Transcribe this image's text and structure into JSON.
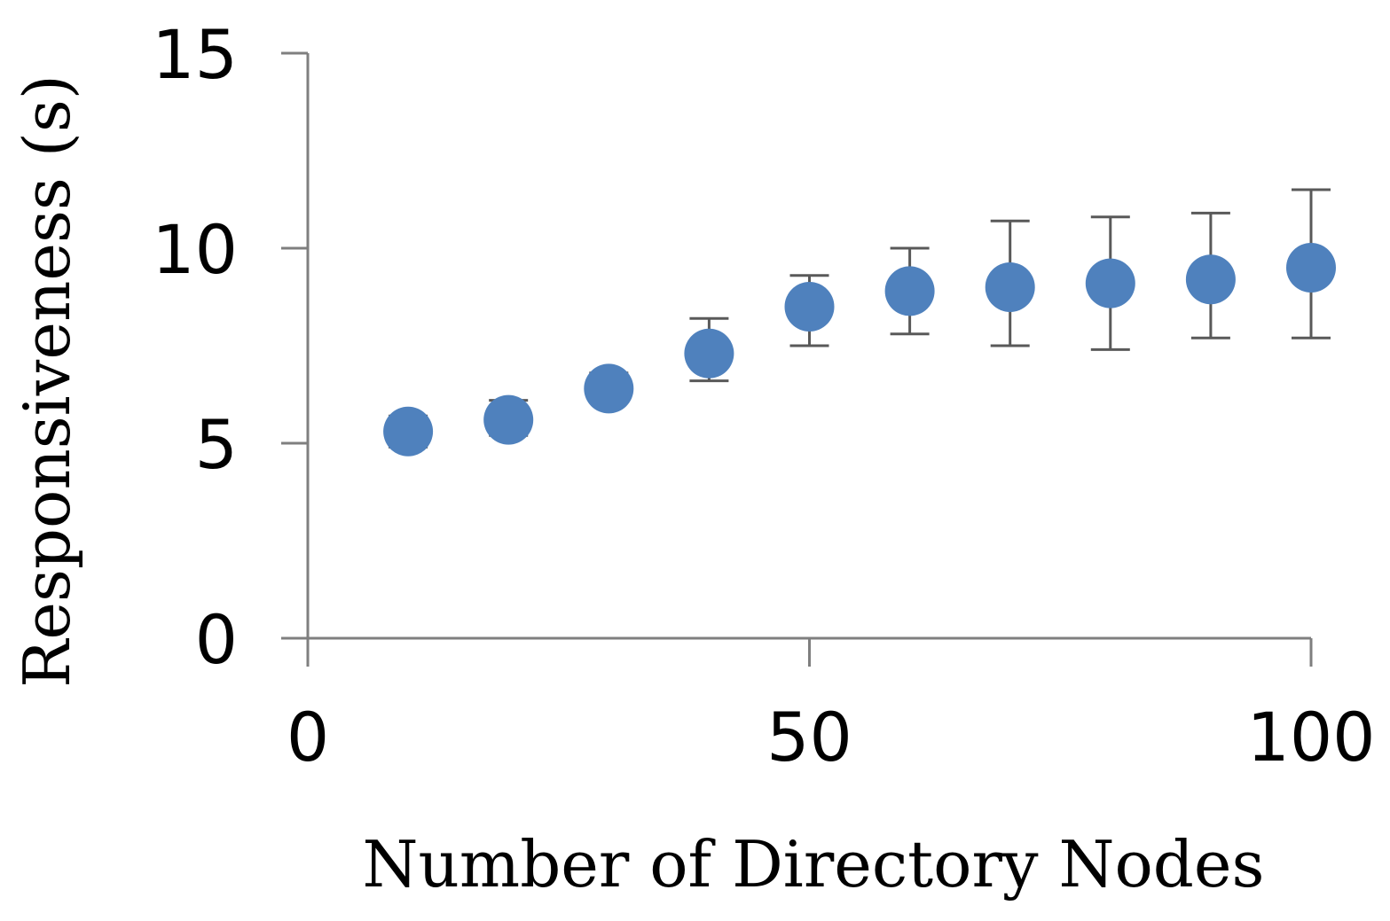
{
  "chart_data": {
    "type": "scatter",
    "title": "",
    "xlabel": "Number of Directory Nodes",
    "ylabel": "Responsiveness (s)",
    "xlim": [
      0,
      100
    ],
    "ylim": [
      0,
      15
    ],
    "x_ticks": [
      0,
      50,
      100
    ],
    "y_ticks": [
      0,
      5,
      10,
      15
    ],
    "grid": false,
    "legend": "none",
    "marker_color": "#4f81bd",
    "error_bar_color": "#595959",
    "series": [
      {
        "x": [
          10,
          20,
          30,
          40,
          50,
          60,
          70,
          80,
          90,
          100
        ],
        "y": [
          5.3,
          5.6,
          6.4,
          7.3,
          8.5,
          8.9,
          9.0,
          9.1,
          9.2,
          9.5
        ],
        "err_low": [
          4.9,
          5.2,
          6.1,
          6.6,
          7.5,
          7.8,
          7.5,
          7.4,
          7.7,
          7.7
        ],
        "err_high": [
          5.7,
          6.1,
          6.8,
          8.2,
          9.3,
          10.0,
          10.7,
          10.8,
          10.9,
          11.5
        ]
      }
    ]
  }
}
